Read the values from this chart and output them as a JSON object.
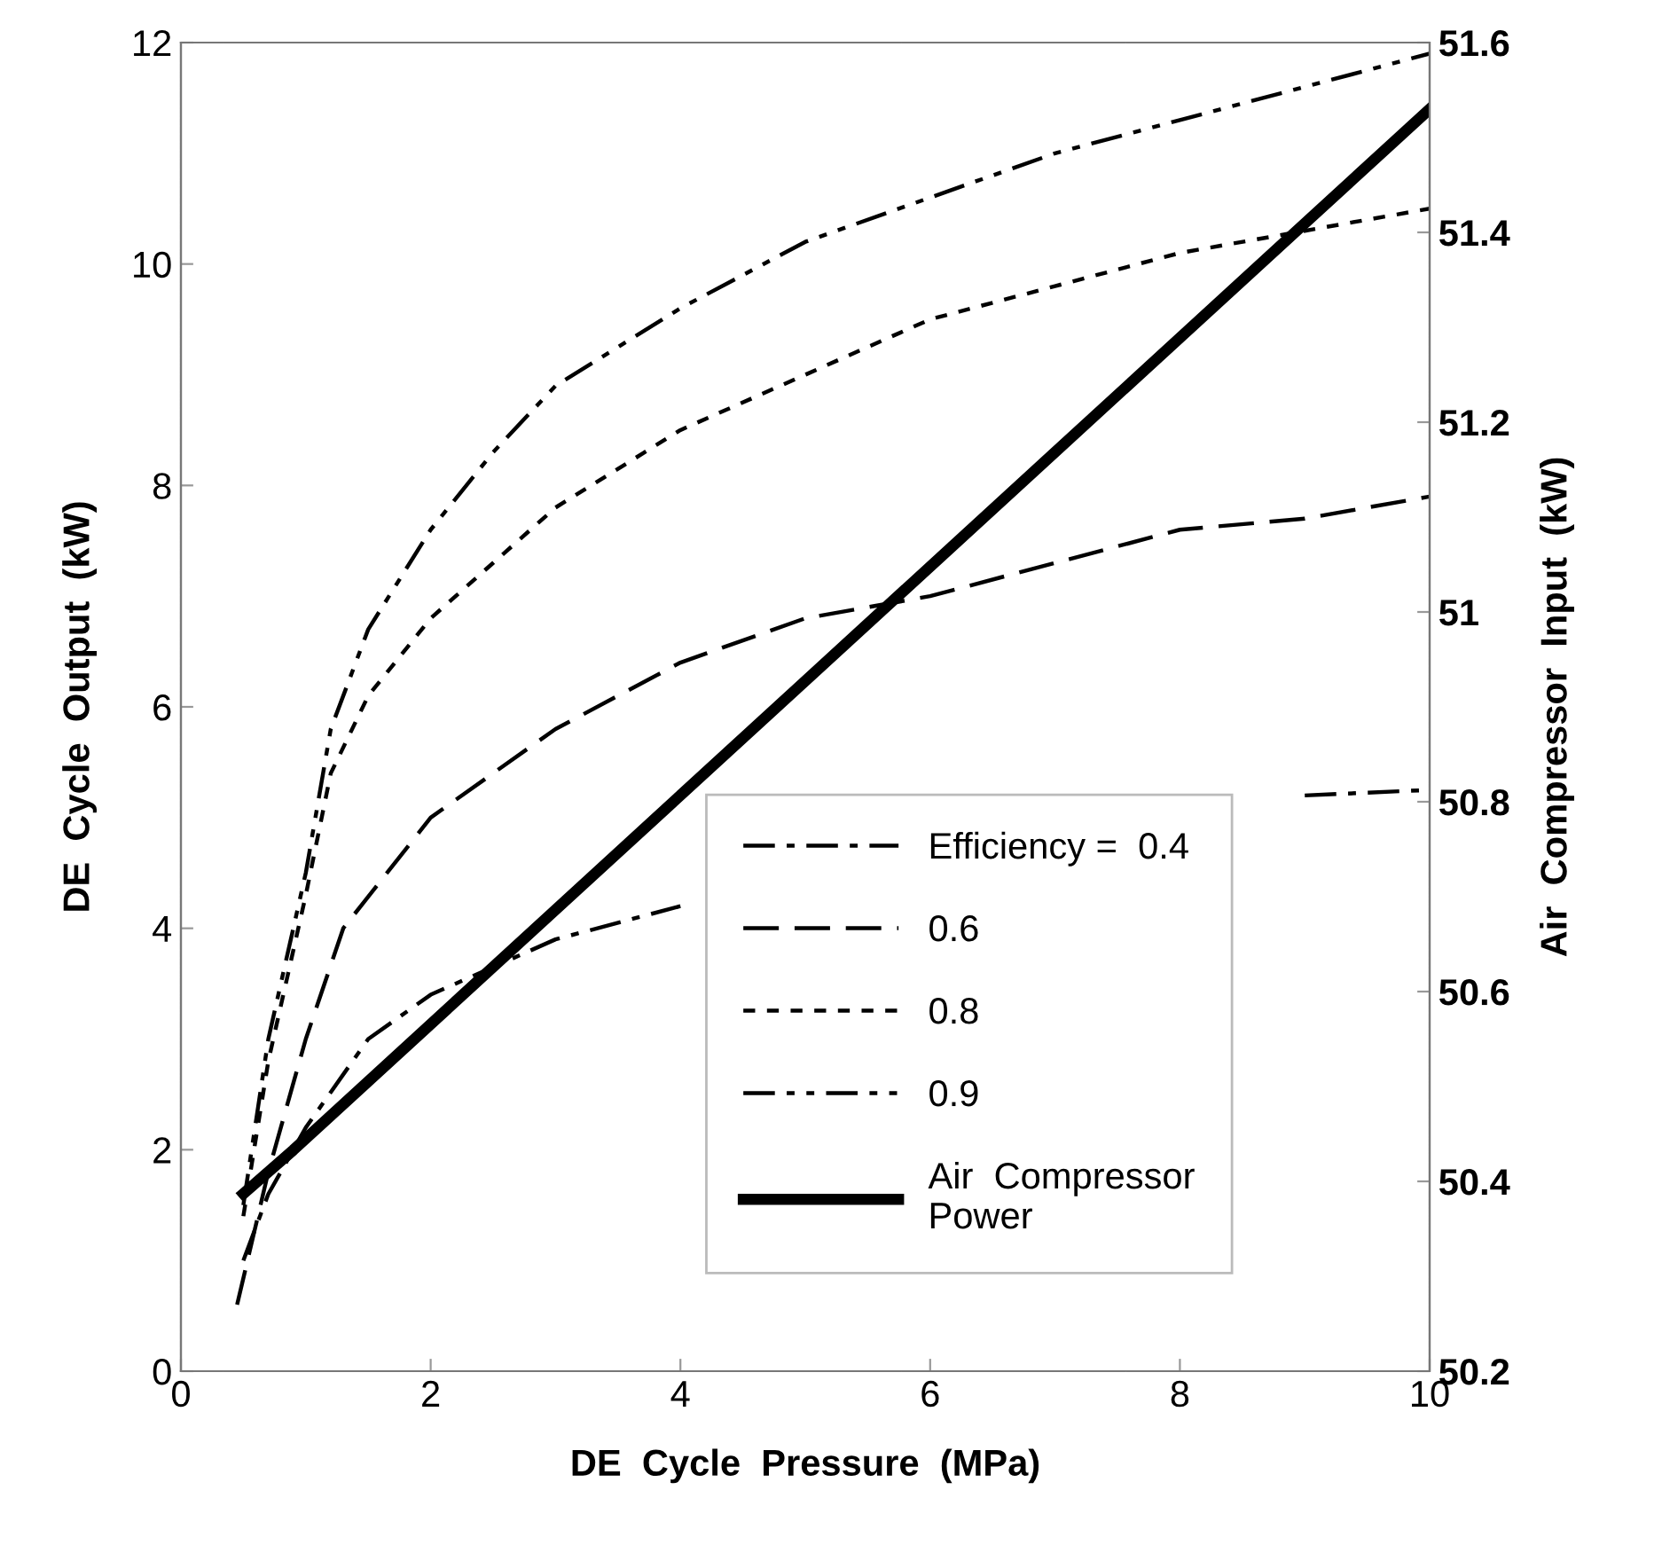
{
  "chart_data": {
    "type": "line",
    "xlabel": "DE  Cycle  Pressure  (MPa)",
    "ylabel": "DE  Cycle  Output  (kW)",
    "y2label": "Air  Compressor  Input  (kW)",
    "xlim": [
      0,
      10
    ],
    "xticks": [
      0,
      2,
      4,
      6,
      8,
      10
    ],
    "ylim": [
      0,
      12
    ],
    "yticks": [
      0,
      2,
      4,
      6,
      8,
      10,
      12
    ],
    "y2lim": [
      50.2,
      51.6
    ],
    "y2ticks": [
      50.2,
      50.4,
      50.6,
      50.8,
      51,
      51.2,
      51.4,
      51.6
    ],
    "grid": false,
    "legend": "bottom right",
    "marker": "none",
    "series": [
      {
        "name": "Efficiency =  0.4",
        "color": "#000000",
        "line_style": "dashdot",
        "x": [
          0.5,
          0.7,
          1.0,
          1.5,
          2,
          3,
          4,
          5,
          6,
          7,
          8,
          9,
          10
        ],
        "values": [
          1.0,
          1.6,
          2.2,
          3.0,
          3.4,
          3.9,
          4.2,
          null,
          null,
          null,
          null,
          5.2,
          5.25
        ]
      },
      {
        "name": "0.6",
        "color": "#000000",
        "line_style": "dashed",
        "x": [
          0.45,
          0.7,
          1.0,
          1.3,
          2,
          3,
          4,
          5,
          6,
          7,
          8,
          9,
          10
        ],
        "values": [
          0.6,
          1.8,
          3.0,
          4.0,
          5.0,
          5.8,
          6.4,
          6.8,
          7.0,
          7.3,
          7.6,
          7.7,
          7.9
        ]
      },
      {
        "name": "0.8",
        "color": "#000000",
        "line_style": "dotted",
        "x": [
          0.5,
          0.7,
          1.0,
          1.2,
          1.5,
          2,
          2.5,
          3,
          4,
          5,
          6,
          7,
          8,
          9,
          10
        ],
        "values": [
          1.4,
          2.8,
          4.3,
          5.4,
          6.1,
          6.8,
          7.3,
          7.8,
          8.5,
          9.0,
          9.5,
          9.8,
          10.1,
          10.3,
          10.5
        ]
      },
      {
        "name": "0.9",
        "color": "#000000",
        "line_style": "dashdotdot",
        "x": [
          0.5,
          0.7,
          1.0,
          1.2,
          1.5,
          2,
          2.5,
          3,
          4,
          5,
          6,
          7,
          8,
          9,
          10
        ],
        "values": [
          1.5,
          3.0,
          4.5,
          5.8,
          6.7,
          7.6,
          8.3,
          8.9,
          9.6,
          10.2,
          10.6,
          11.0,
          11.3,
          11.6,
          11.9
        ]
      },
      {
        "name": "Air  Compressor\nPower",
        "color": "#000000",
        "line_style": "solid",
        "axis": "y2",
        "x": [
          0.5,
          0.9,
          10
        ],
        "values": [
          50.387,
          50.433,
          51.53
        ]
      }
    ]
  }
}
